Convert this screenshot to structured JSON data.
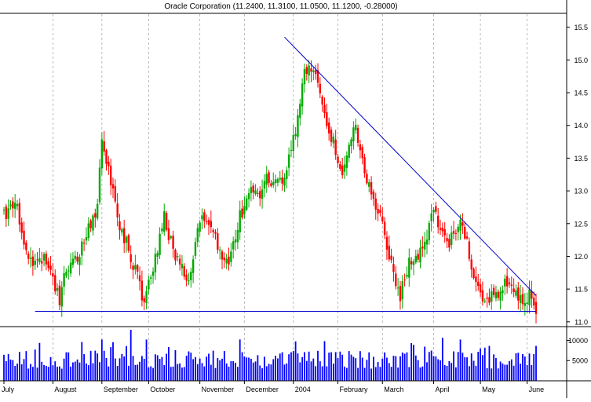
{
  "chart_data": {
    "type": "candlestick",
    "title": "Oracle Corporation (11.2400, 11.3100, 11.0500, 11.1200, -0.28000)",
    "price_axis": {
      "ticks": [
        "15.5",
        "15.0",
        "14.5",
        "14.0",
        "13.5",
        "13.0",
        "12.5",
        "12.0",
        "11.5",
        "11.0"
      ],
      "ylim": [
        10.95,
        15.7
      ]
    },
    "volume_axis": {
      "ticks": [
        "10000",
        "5000"
      ],
      "ylim": [
        0,
        13000
      ]
    },
    "months": [
      "July",
      "August",
      "September",
      "October",
      "November",
      "December",
      "2004",
      "February",
      "March",
      "April",
      "May",
      "June"
    ],
    "month_start_index": [
      0,
      22,
      44,
      65,
      88,
      108,
      130,
      150,
      170,
      193,
      214,
      235
    ],
    "num_sessions": 240,
    "grid": "vertical-dashed",
    "colors": {
      "up": "#00aa00",
      "down": "#ff0000",
      "trendline": "#0000cc",
      "volume": "#0000ff"
    },
    "price_anchors": [
      [
        0,
        12.6
      ],
      [
        5,
        12.9
      ],
      [
        8,
        12.4
      ],
      [
        12,
        11.9
      ],
      [
        17,
        12.0
      ],
      [
        21,
        11.8
      ],
      [
        25,
        11.3
      ],
      [
        28,
        11.8
      ],
      [
        33,
        12.0
      ],
      [
        37,
        12.3
      ],
      [
        42,
        12.8
      ],
      [
        44,
        13.7
      ],
      [
        47,
        13.3
      ],
      [
        50,
        12.9
      ],
      [
        52,
        12.5
      ],
      [
        55,
        12.2
      ],
      [
        59,
        11.8
      ],
      [
        63,
        11.3
      ],
      [
        66,
        11.7
      ],
      [
        69,
        12.1
      ],
      [
        72,
        12.6
      ],
      [
        75,
        12.2
      ],
      [
        79,
        11.8
      ],
      [
        83,
        11.7
      ],
      [
        86,
        12.2
      ],
      [
        89,
        12.6
      ],
      [
        92,
        12.5
      ],
      [
        95,
        12.3
      ],
      [
        98,
        11.9
      ],
      [
        102,
        12.0
      ],
      [
        106,
        12.6
      ],
      [
        110,
        13.0
      ],
      [
        114,
        12.9
      ],
      [
        118,
        13.2
      ],
      [
        123,
        13.1
      ],
      [
        127,
        13.3
      ],
      [
        130,
        13.8
      ],
      [
        133,
        14.3
      ],
      [
        135,
        14.8
      ],
      [
        138,
        14.9
      ],
      [
        141,
        14.6
      ],
      [
        145,
        14.1
      ],
      [
        149,
        13.6
      ],
      [
        152,
        13.3
      ],
      [
        155,
        13.7
      ],
      [
        158,
        14.0
      ],
      [
        160,
        13.6
      ],
      [
        163,
        13.1
      ],
      [
        166,
        12.9
      ],
      [
        170,
        12.5
      ],
      [
        174,
        11.9
      ],
      [
        178,
        11.4
      ],
      [
        182,
        11.9
      ],
      [
        186,
        12.0
      ],
      [
        190,
        12.3
      ],
      [
        193,
        12.7
      ],
      [
        196,
        12.4
      ],
      [
        200,
        12.2
      ],
      [
        203,
        12.4
      ],
      [
        206,
        12.5
      ],
      [
        209,
        12.0
      ],
      [
        212,
        11.6
      ],
      [
        215,
        11.3
      ],
      [
        219,
        11.4
      ],
      [
        223,
        11.5
      ],
      [
        226,
        11.6
      ],
      [
        229,
        11.4
      ],
      [
        233,
        11.3
      ],
      [
        236,
        11.4
      ],
      [
        239,
        11.12
      ]
    ],
    "annotations": [
      {
        "type": "trendline",
        "from": {
          "index": 126,
          "price": 15.35
        },
        "to": {
          "index": 239,
          "price": 11.4
        }
      },
      {
        "type": "support",
        "from": {
          "index": 14,
          "price": 11.16
        },
        "to": {
          "index": 239,
          "price": 11.16
        }
      }
    ]
  }
}
